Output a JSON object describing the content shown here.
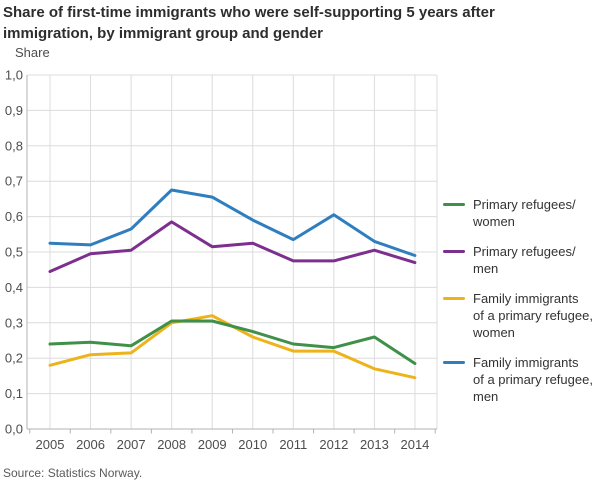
{
  "title": "Share of first-time immigrants who were self-supporting 5 years after immigration, by immigrant group and gender",
  "source": "Source: Statistics Norway.",
  "colors": {
    "grid": "#dcdcdc",
    "axis": "#b3b3b3",
    "tick_text": "#4d4d4d",
    "legend_text": "#333333"
  },
  "chart_data": {
    "type": "line",
    "title": "Share of first-time immigrants who were self-supporting 5 years after immigration, by immigrant group and gender",
    "ylabel": "Share",
    "xlabel": "",
    "x_categories": [
      "2005",
      "2006",
      "2007",
      "2008",
      "2009",
      "2010",
      "2011",
      "2012",
      "2013",
      "2014"
    ],
    "ylim": [
      0,
      1.0
    ],
    "ytick_step": 0.1,
    "ytick_labels": [
      "0,0",
      "0,1",
      "0,2",
      "0,3",
      "0,4",
      "0,5",
      "0,6",
      "0,7",
      "0,8",
      "0,9",
      "1,0"
    ],
    "grid": true,
    "legend_position": "right",
    "series": [
      {
        "name": "Primary refugees/women",
        "legend_label": "Primary refugees/\nwomen",
        "color": "#3f9048",
        "values": [
          0.24,
          0.245,
          0.235,
          0.305,
          0.305,
          0.275,
          0.24,
          0.23,
          0.26,
          0.185
        ]
      },
      {
        "name": "Primary refugees/men",
        "legend_label": "Primary refugees/\nmen",
        "color": "#7d2f8f",
        "values": [
          0.445,
          0.495,
          0.505,
          0.585,
          0.515,
          0.525,
          0.475,
          0.475,
          0.505,
          0.47
        ]
      },
      {
        "name": "Family immigrants of a primary refugee, women",
        "legend_label": "Family immigrants\nof a primary refugee,\nwomen",
        "color": "#eeb21b",
        "values": [
          0.18,
          0.21,
          0.215,
          0.3,
          0.32,
          0.26,
          0.22,
          0.22,
          0.17,
          0.145
        ]
      },
      {
        "name": "Family immigrants of a primary refugee, men",
        "legend_label": "Family immigrants\nof a primary refugee,\nmen",
        "color": "#2f7ec0",
        "values": [
          0.525,
          0.52,
          0.565,
          0.675,
          0.655,
          0.59,
          0.535,
          0.605,
          0.53,
          0.49
        ]
      }
    ],
    "draw_order": [
      3,
      2,
      1,
      0
    ]
  }
}
